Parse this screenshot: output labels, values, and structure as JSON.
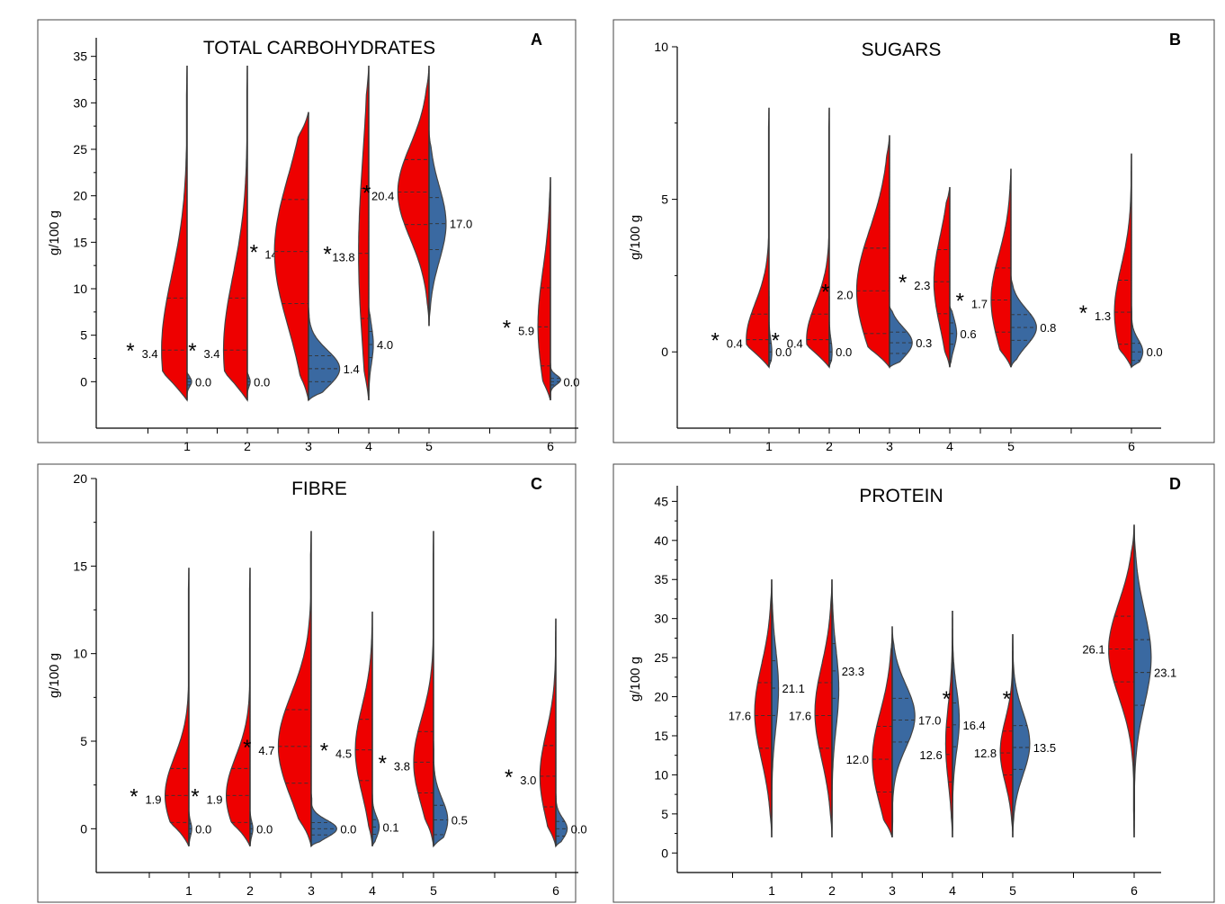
{
  "colors": {
    "left_group": "#ee0000",
    "right_group": "#3a69a1"
  },
  "chart_data": [
    {
      "panel": "A",
      "type": "violin",
      "title": "TOTAL CARBOHYDRATES",
      "ylabel": "g/100 g",
      "ylim": [
        -5,
        37
      ],
      "yticks": [
        0,
        5,
        10,
        15,
        20,
        25,
        30,
        35
      ],
      "categories": [
        "1",
        "2",
        "3",
        "4",
        "5",
        "6"
      ],
      "left_medians": [
        "3.4",
        "3.4",
        "",
        "13.8",
        "20.4",
        "5.9"
      ],
      "right_medians": [
        "0.0",
        "0.0",
        "1.4",
        "4.0",
        "17.0",
        "0.0"
      ],
      "mid_label": [
        "",
        "14.0",
        "",
        "",
        "",
        ""
      ],
      "significant": [
        true,
        true,
        true,
        true,
        true,
        true
      ],
      "left_shape": [
        {
          "min": -2,
          "max": 34,
          "center": 3.4,
          "spread": 8,
          "width": 0.45
        },
        {
          "min": -2,
          "max": 34,
          "center": 3.4,
          "spread": 8,
          "width": 0.42
        },
        {
          "min": -2,
          "max": 29,
          "center": 14,
          "spread": 8,
          "width": 0.6
        },
        {
          "min": -2,
          "max": 34,
          "center": 13.8,
          "spread": 10,
          "width": 0.18
        },
        {
          "min": 6,
          "max": 34,
          "center": 20.4,
          "spread": 5,
          "width": 0.55
        },
        {
          "min": -2,
          "max": 22,
          "center": 6,
          "spread": 6,
          "width": 0.22
        }
      ],
      "right_shape": [
        {
          "min": -2,
          "max": 1,
          "center": 0,
          "spread": 0.5,
          "width": 0.08
        },
        {
          "min": -2,
          "max": 1,
          "center": 0,
          "spread": 0.5,
          "width": 0.05
        },
        {
          "min": -2,
          "max": 8,
          "center": 1.4,
          "spread": 2,
          "width": 0.55
        },
        {
          "min": -2,
          "max": 8,
          "center": 4,
          "spread": 2,
          "width": 0.08
        },
        {
          "min": 6,
          "max": 27,
          "center": 17,
          "spread": 4,
          "width": 0.3
        },
        {
          "min": -2,
          "max": 2,
          "center": 0.2,
          "spread": 0.5,
          "width": 0.18
        }
      ]
    },
    {
      "panel": "B",
      "type": "violin",
      "title": "SUGARS",
      "ylabel": "g/100 g",
      "ylim": [
        -2.5,
        10
      ],
      "yticks": [
        0,
        5,
        10
      ],
      "categories": [
        "1",
        "2",
        "3",
        "4",
        "5",
        "6"
      ],
      "left_medians": [
        "0.4",
        "0.4",
        "2.0",
        "2.3",
        "1.7",
        "1.3"
      ],
      "right_medians": [
        "0.0",
        "0.0",
        "0.3",
        "0.6",
        "0.8",
        "0.0"
      ],
      "significant": [
        true,
        true,
        true,
        true,
        true,
        true
      ],
      "left_shape": [
        {
          "min": -0.5,
          "max": 8,
          "center": 0.4,
          "spread": 1.2,
          "width": 0.4
        },
        {
          "min": -0.5,
          "max": 8,
          "center": 0.4,
          "spread": 1.2,
          "width": 0.4
        },
        {
          "min": -0.5,
          "max": 7.1,
          "center": 2,
          "spread": 2,
          "width": 0.58
        },
        {
          "min": -0.5,
          "max": 5.4,
          "center": 2.3,
          "spread": 1.5,
          "width": 0.28
        },
        {
          "min": -0.5,
          "max": 6,
          "center": 1.7,
          "spread": 1.5,
          "width": 0.35
        },
        {
          "min": -0.5,
          "max": 6.5,
          "center": 1.3,
          "spread": 1.5,
          "width": 0.3
        }
      ],
      "right_shape": [
        {
          "min": -0.5,
          "max": 2,
          "center": 0,
          "spread": 0.4,
          "width": 0.05
        },
        {
          "min": -0.5,
          "max": 2,
          "center": 0,
          "spread": 0.4,
          "width": 0.05
        },
        {
          "min": -0.5,
          "max": 1.5,
          "center": 0.3,
          "spread": 0.5,
          "width": 0.4
        },
        {
          "min": -0.5,
          "max": 1.5,
          "center": 0.6,
          "spread": 0.5,
          "width": 0.12
        },
        {
          "min": -0.5,
          "max": 2.5,
          "center": 0.8,
          "spread": 0.6,
          "width": 0.45
        },
        {
          "min": -0.5,
          "max": 1.5,
          "center": 0,
          "spread": 0.4,
          "width": 0.2
        }
      ]
    },
    {
      "panel": "C",
      "type": "violin",
      "title": "FIBRE",
      "ylabel": "g/100 g",
      "ylim": [
        -2.5,
        20
      ],
      "yticks": [
        0,
        5,
        10,
        15,
        20
      ],
      "categories": [
        "1",
        "2",
        "3",
        "4",
        "5",
        "6"
      ],
      "left_medians": [
        "1.9",
        "1.9",
        "4.7",
        "4.5",
        "3.8",
        "3.0"
      ],
      "right_medians": [
        "0.0",
        "0.0",
        "0.0",
        "0.1",
        "0.5",
        "0.0"
      ],
      "significant": [
        true,
        true,
        true,
        true,
        true,
        true
      ],
      "left_shape": [
        {
          "min": -1,
          "max": 14.9,
          "center": 1.9,
          "spread": 2.2,
          "width": 0.42
        },
        {
          "min": -1,
          "max": 14.9,
          "center": 1.9,
          "spread": 2.2,
          "width": 0.42
        },
        {
          "min": -1,
          "max": 17,
          "center": 4.7,
          "spread": 3,
          "width": 0.58
        },
        {
          "min": -1,
          "max": 12.4,
          "center": 4.5,
          "spread": 2.5,
          "width": 0.3
        },
        {
          "min": -1,
          "max": 17,
          "center": 3.8,
          "spread": 2.5,
          "width": 0.35
        },
        {
          "min": -1,
          "max": 12,
          "center": 3,
          "spread": 2.5,
          "width": 0.28
        }
      ],
      "right_shape": [
        {
          "min": -1,
          "max": 1,
          "center": 0,
          "spread": 0.4,
          "width": 0.05
        },
        {
          "min": -1,
          "max": 1,
          "center": 0,
          "spread": 0.4,
          "width": 0.05
        },
        {
          "min": -1,
          "max": 2,
          "center": 0,
          "spread": 0.5,
          "width": 0.45
        },
        {
          "min": -1,
          "max": 2,
          "center": 0.1,
          "spread": 0.6,
          "width": 0.12
        },
        {
          "min": -1,
          "max": 5,
          "center": 0.5,
          "spread": 1.2,
          "width": 0.25
        },
        {
          "min": -1,
          "max": 2,
          "center": 0,
          "spread": 0.6,
          "width": 0.2
        }
      ]
    },
    {
      "panel": "D",
      "type": "violin",
      "title": "PROTEIN",
      "ylabel": "g/100 g",
      "ylim": [
        -2.5,
        47
      ],
      "yticks": [
        0,
        5,
        10,
        15,
        20,
        25,
        30,
        35,
        40,
        45
      ],
      "categories": [
        "1",
        "2",
        "3",
        "4",
        "5",
        "6"
      ],
      "left_medians": [
        "17.6",
        "17.6",
        "12.0",
        "12.6",
        "12.8",
        "26.1"
      ],
      "right_medians": [
        "21.1",
        "23.3",
        "17.0",
        "16.4",
        "13.5",
        "23.1"
      ],
      "significant": [
        false,
        false,
        false,
        true,
        true,
        false
      ],
      "left_shape": [
        {
          "min": 2,
          "max": 35,
          "center": 18,
          "spread": 6,
          "width": 0.3
        },
        {
          "min": 2,
          "max": 35,
          "center": 18,
          "spread": 6,
          "width": 0.3
        },
        {
          "min": 2,
          "max": 28,
          "center": 12,
          "spread": 6,
          "width": 0.35
        },
        {
          "min": 2,
          "max": 31,
          "center": 14,
          "spread": 5,
          "width": 0.12
        },
        {
          "min": 2,
          "max": 28,
          "center": 13,
          "spread": 4,
          "width": 0.22
        },
        {
          "min": 2,
          "max": 42,
          "center": 26,
          "spread": 6,
          "width": 0.45
        }
      ],
      "right_shape": [
        {
          "min": 2,
          "max": 35,
          "center": 21,
          "spread": 5,
          "width": 0.12
        },
        {
          "min": 2,
          "max": 35,
          "center": 21,
          "spread": 5,
          "width": 0.12
        },
        {
          "min": 2,
          "max": 29,
          "center": 17.5,
          "spread": 4,
          "width": 0.4
        },
        {
          "min": 2,
          "max": 31,
          "center": 17,
          "spread": 4,
          "width": 0.12
        },
        {
          "min": 2,
          "max": 28,
          "center": 14,
          "spread": 4,
          "width": 0.3
        },
        {
          "min": 2,
          "max": 42,
          "center": 25,
          "spread": 6,
          "width": 0.3
        }
      ]
    }
  ]
}
